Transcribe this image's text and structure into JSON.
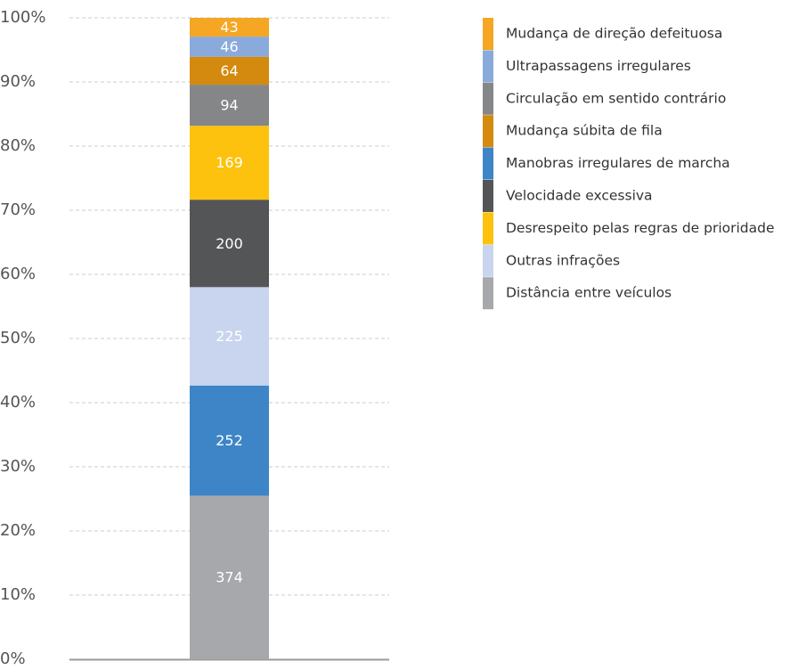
{
  "chart_data": {
    "type": "bar",
    "stacked": "percent",
    "categories": [
      null
    ],
    "series": [
      {
        "name": "Distância entre veículos",
        "color": "#a6a8ab",
        "values": [
          374
        ]
      },
      {
        "name": "Manobras irregulares de marcha",
        "color": "#3d85c6",
        "values": [
          252
        ]
      },
      {
        "name": "Outras infrações",
        "color": "#c9d5ee",
        "values": [
          225
        ]
      },
      {
        "name": "Velocidade excessiva",
        "color": "#545557",
        "values": [
          200
        ]
      },
      {
        "name": "Desrespeito pelas regras de prioridade",
        "color": "#fdc20e",
        "values": [
          169
        ]
      },
      {
        "name": "Circulação em sentido contrário",
        "color": "#858688",
        "values": [
          94
        ]
      },
      {
        "name": "Mudança súbita de fila",
        "color": "#d4890f",
        "values": [
          64
        ]
      },
      {
        "name": "Ultrapassagens irregulares",
        "color": "#8aaadc",
        "values": [
          46
        ]
      },
      {
        "name": "Mudança de direção defeituosa",
        "color": "#f5a623",
        "values": [
          43
        ]
      }
    ],
    "legend_order": [
      8,
      7,
      5,
      6,
      1,
      3,
      4,
      2,
      0
    ],
    "legend": "right",
    "ylim": [
      0,
      100
    ],
    "yticks": [
      {
        "value": 0,
        "label": "0%"
      },
      {
        "value": 10,
        "label": "10%"
      },
      {
        "value": 20,
        "label": "20%"
      },
      {
        "value": 30,
        "label": "30%"
      },
      {
        "value": 40,
        "label": "40%"
      },
      {
        "value": 50,
        "label": "50%"
      },
      {
        "value": 60,
        "label": "60%"
      },
      {
        "value": 70,
        "label": "70%"
      },
      {
        "value": 80,
        "label": "80%"
      },
      {
        "value": 90,
        "label": "90%"
      },
      {
        "value": 100,
        "label": "100%"
      }
    ],
    "grid": true
  }
}
